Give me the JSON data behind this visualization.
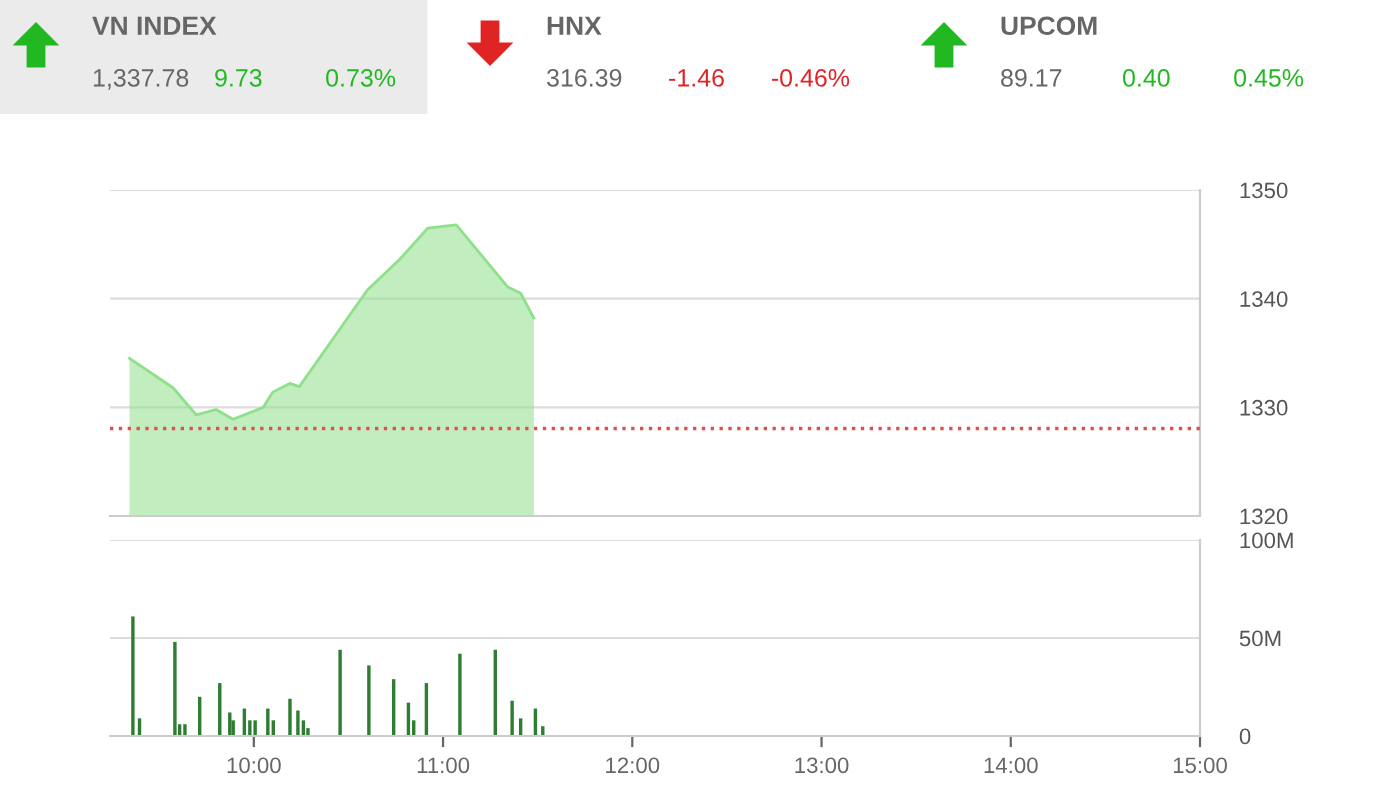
{
  "chart_data": [
    {
      "type": "other",
      "categories": [
        "VN INDEX",
        "HNX",
        "UPCOM"
      ],
      "value_labels": [
        "9.73",
        "-1.46",
        "0.40"
      ],
      "annotations": [
        "1,337.78",
        "0.73%",
        "316.39",
        "-0.46%",
        "89.17",
        "0.45%"
      ],
      "colors": [
        "#22b822",
        "#e02424",
        "#22b822"
      ]
    },
    {
      "type": "area",
      "x": [
        9.343,
        9.573,
        9.696,
        9.8,
        9.89,
        10.05,
        10.1,
        10.19,
        10.24,
        10.6,
        10.77,
        10.92,
        11.07,
        11.34,
        11.41,
        11.48
      ],
      "series": [
        {
          "color": "#8fe08a",
          "values": [
            1334.5,
            1331.8,
            1329.3,
            1329.8,
            1328.9,
            1330.0,
            1331.4,
            1332.2,
            1331.9,
            1340.8,
            1343.6,
            1346.5,
            1346.8,
            1341.1,
            1340.5,
            1338.2
          ]
        }
      ],
      "xlim": [
        9.24,
        15
      ],
      "ylim": [
        1320,
        1350
      ],
      "yticks": [
        1320,
        1330,
        1340,
        1350
      ],
      "tick_labels": "y",
      "grid": "y",
      "ref_lines": [
        {
          "axis": "y",
          "value": 1328.05,
          "color": "#e05050",
          "line_style": "dotted"
        }
      ]
    },
    {
      "type": "bar",
      "x": [
        9.361,
        9.396,
        9.583,
        9.608,
        9.636,
        9.714,
        9.82,
        9.873,
        9.891,
        9.95,
        9.979,
        10.007,
        10.074,
        10.103,
        10.191,
        10.233,
        10.262,
        10.286,
        10.456,
        10.608,
        10.739,
        10.817,
        10.845,
        10.912,
        11.089,
        11.276,
        11.365,
        11.41,
        11.488,
        11.527
      ],
      "series": [
        {
          "color": "#2e7d32",
          "values": [
            61,
            9,
            48,
            6,
            6,
            20,
            27,
            12,
            8,
            14,
            8,
            8,
            14,
            8,
            19,
            13,
            8,
            4,
            44,
            36,
            29,
            17,
            8,
            27,
            42,
            44,
            18,
            9,
            14,
            5
          ]
        }
      ],
      "xlim": [
        9.24,
        15
      ],
      "xticks": [
        {
          "value": 10,
          "label": "10:00"
        },
        {
          "value": 11,
          "label": "11:00"
        },
        {
          "value": 12,
          "label": "12:00"
        },
        {
          "value": 13,
          "label": "13:00"
        },
        {
          "value": 14,
          "label": "14:00"
        },
        {
          "value": 15,
          "label": "15:00"
        }
      ],
      "ylim": [
        0,
        100
      ],
      "yticks": [
        {
          "value": 0,
          "label": "0"
        },
        {
          "value": 50,
          "label": "50M"
        },
        {
          "value": 100,
          "label": "100M"
        }
      ],
      "grid": "y"
    }
  ]
}
